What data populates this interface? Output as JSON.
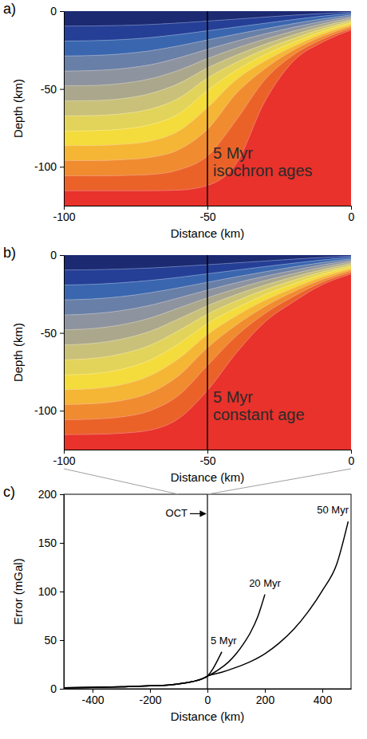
{
  "chart_data": [
    {
      "type": "contour",
      "label": "a)",
      "x_label": "Distance (km)",
      "y_label": "Depth (km)",
      "xlim": [
        -100,
        0
      ],
      "ylim": [
        -125,
        0
      ],
      "xticks": [
        -100,
        -50,
        0
      ],
      "yticks": [
        -100,
        -50,
        0
      ],
      "vline": {
        "x": -50
      },
      "annotation": [
        "5 Myr",
        "isochron ages"
      ],
      "x": [
        -100,
        -90,
        -80,
        -70,
        -60,
        -50,
        -40,
        -30,
        -20,
        -10,
        0
      ],
      "isotherms": [
        [
          -9.6,
          -9.5,
          -9.2,
          -8.6,
          -7.6,
          -6.4,
          -5.1,
          -3.8,
          -2.6,
          -1.5,
          -0.6
        ],
        [
          -19.2,
          -19,
          -18.3,
          -17,
          -15,
          -12.6,
          -10.2,
          -7.8,
          -5.4,
          -3.2,
          -1.4
        ],
        [
          -28.8,
          -28.5,
          -27.5,
          -25.5,
          -22.3,
          -18.5,
          -14.8,
          -11.3,
          -8,
          -5,
          -2.4
        ],
        [
          -38.5,
          -38.2,
          -37,
          -34.5,
          -30,
          -24.5,
          -19.3,
          -14.6,
          -10.4,
          -6.6,
          -3.4
        ],
        [
          -48,
          -47.8,
          -46.5,
          -43.5,
          -38,
          -30.5,
          -23.8,
          -18,
          -12.8,
          -8.2,
          -4.4
        ],
        [
          -57.7,
          -57.5,
          -56.3,
          -53,
          -46.5,
          -36.5,
          -28.3,
          -21.3,
          -15.2,
          -9.8,
          -5.4
        ],
        [
          -67.3,
          -67.1,
          -66,
          -63,
          -56,
          -43,
          -33,
          -24.6,
          -17.6,
          -11.4,
          -6.5
        ],
        [
          -77,
          -76.8,
          -75.8,
          -73,
          -66,
          -51,
          -38,
          -28,
          -20,
          -13,
          -7.6
        ],
        [
          -86.5,
          -86.4,
          -85.6,
          -83.5,
          -77,
          -62,
          -44,
          -32,
          -22.5,
          -14.6,
          -8.7
        ],
        [
          -96,
          -96,
          -95.5,
          -94,
          -89,
          -76,
          -53,
          -37,
          -25,
          -16.2,
          -9.8
        ],
        [
          -105.8,
          -105.8,
          -105.6,
          -105,
          -102,
          -93,
          -70,
          -44,
          -28,
          -18,
          -11
        ],
        [
          -115.4,
          -115.4,
          -115.4,
          -115.4,
          -115,
          -112,
          -98,
          -58,
          -32,
          -20,
          -12.2
        ]
      ],
      "colors": [
        "#1c2a72",
        "#253f96",
        "#3a66b0",
        "#687fa8",
        "#8e93a0",
        "#aaa78c",
        "#c9c07a",
        "#e2d35a",
        "#f3dc3c",
        "#f5b636",
        "#f08b2f",
        "#eb6229",
        "#e8322b"
      ]
    },
    {
      "type": "contour",
      "label": "b)",
      "x_label": "Distance (km)",
      "y_label": "Depth (km)",
      "xlim": [
        -100,
        0
      ],
      "ylim": [
        -125,
        0
      ],
      "xticks": [
        -100,
        -50,
        0
      ],
      "yticks": [
        -100,
        -50,
        0
      ],
      "vline": {
        "x": -50
      },
      "annotation": [
        "5 Myr",
        "constant age"
      ],
      "x": [
        -100,
        -90,
        -80,
        -70,
        -60,
        -50,
        -40,
        -30,
        -20,
        -10,
        0
      ],
      "isotherms": [
        [
          -9.6,
          -9.4,
          -9,
          -8.3,
          -7.3,
          -6.2,
          -5,
          -3.8,
          -2.6,
          -1.5,
          -0.6
        ],
        [
          -19.2,
          -18.8,
          -17.8,
          -16.3,
          -14.3,
          -12,
          -9.7,
          -7.4,
          -5.2,
          -3.1,
          -1.4
        ],
        [
          -28.8,
          -28.2,
          -26.7,
          -24.2,
          -21,
          -17.5,
          -14,
          -10.7,
          -7.6,
          -4.8,
          -2.4
        ],
        [
          -38.5,
          -37.7,
          -35.7,
          -32.3,
          -27.5,
          -22.5,
          -17.8,
          -13.6,
          -9.8,
          -6.3,
          -3.4
        ],
        [
          -48,
          -47.2,
          -44.8,
          -40.5,
          -34,
          -27.5,
          -21.6,
          -16.4,
          -11.9,
          -7.8,
          -4.4
        ],
        [
          -57.7,
          -56.8,
          -54,
          -49,
          -41,
          -32.5,
          -25.4,
          -19.3,
          -14,
          -9.3,
          -5.4
        ],
        [
          -67.3,
          -66.4,
          -63.5,
          -58,
          -48.5,
          -38,
          -29.5,
          -22.3,
          -16.2,
          -10.8,
          -6.5
        ],
        [
          -77,
          -76.2,
          -73.4,
          -67.5,
          -57,
          -44,
          -34,
          -25.5,
          -18.5,
          -12.3,
          -7.6
        ],
        [
          -86.5,
          -85.8,
          -83.3,
          -77.5,
          -66.5,
          -51,
          -39,
          -29,
          -21,
          -14,
          -8.7
        ],
        [
          -96,
          -95.5,
          -93.5,
          -88.5,
          -77.5,
          -59.5,
          -45,
          -33,
          -23.5,
          -15.6,
          -9.8
        ],
        [
          -105.8,
          -105.4,
          -104,
          -100,
          -90,
          -71,
          -52,
          -37.5,
          -26.5,
          -17.3,
          -11
        ],
        [
          -115.4,
          -115.2,
          -114.5,
          -112.5,
          -105,
          -87,
          -63,
          -43,
          -30,
          -19,
          -12.2
        ]
      ],
      "colors": [
        "#1c2a72",
        "#253f96",
        "#3a66b0",
        "#687fa8",
        "#8e93a0",
        "#aaa78c",
        "#c9c07a",
        "#e2d35a",
        "#f3dc3c",
        "#f5b636",
        "#f08b2f",
        "#eb6229",
        "#e8322b"
      ]
    },
    {
      "type": "line",
      "label": "c)",
      "x_label": "Distance (km)",
      "y_label": "Error (mGal)",
      "xlim": [
        -500,
        500
      ],
      "ylim": [
        0,
        200
      ],
      "xticks": [
        -400,
        -200,
        0,
        200,
        400
      ],
      "yticks": [
        0,
        50,
        100,
        150,
        200
      ],
      "vline": {
        "x": 0,
        "label": "OCT"
      },
      "series": [
        {
          "name": "5 Myr",
          "color": "#000000",
          "x": [
            -500,
            -400,
            -300,
            -200,
            -100,
            -50,
            -20,
            0,
            20,
            40,
            50
          ],
          "values": [
            1,
            1.4,
            2,
            3,
            5,
            7.5,
            10,
            13,
            21,
            32,
            38
          ]
        },
        {
          "name": "20 Myr",
          "color": "#000000",
          "x": [
            -500,
            -400,
            -300,
            -200,
            -100,
            -50,
            -20,
            0,
            25,
            50,
            75,
            100,
            125,
            150,
            175,
            200
          ],
          "values": [
            1,
            1.4,
            2,
            3,
            5,
            7.5,
            10,
            13,
            17,
            22,
            28,
            36,
            46,
            58,
            74,
            97
          ]
        },
        {
          "name": "50 Myr",
          "color": "#000000",
          "x": [
            -500,
            -400,
            -300,
            -200,
            -100,
            -50,
            -20,
            0,
            50,
            100,
            150,
            200,
            250,
            300,
            350,
            400,
            450,
            490
          ],
          "values": [
            1,
            1.4,
            2,
            3,
            5,
            7.5,
            10,
            13,
            17,
            22,
            28,
            36,
            47,
            61,
            79,
            101,
            128,
            172
          ]
        }
      ]
    }
  ]
}
